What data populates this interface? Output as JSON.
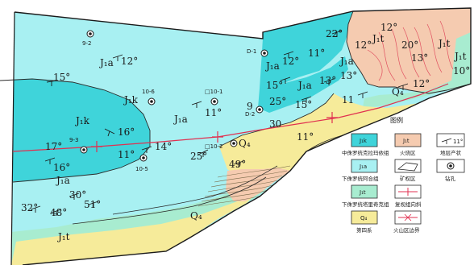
{
  "units": {
    "j1k": "J₁k",
    "j1a": "J₁a",
    "j1t": "J₁t",
    "q4": "Q₄"
  },
  "dips": {
    "d12a": "12°",
    "d15a": "15°",
    "d16a": "16°",
    "d17": "17°",
    "d16b": "16°",
    "d11a": "11°",
    "d14": "14°",
    "d11b": "11°",
    "d25a": "25°",
    "d49": "49°",
    "d32": "32°",
    "d30a": "30°",
    "d48": "48°",
    "d51": "51°",
    "d22": "22°",
    "d11c": "11°",
    "d12b": "12°",
    "d15b": "15°",
    "d25b": "25°",
    "d13a": "13°",
    "d15c": "15°",
    "d13b": "13°",
    "d11d": "11",
    "d30b": "30",
    "d11e": "11°",
    "d12c": "12°",
    "d12d": "12°",
    "d20": "20°",
    "d13c": "13°",
    "d12e": "12°",
    "d10": "10°"
  },
  "wells": {
    "w92": "9-2",
    "w106": "10-6",
    "w101": "□10-1",
    "w102": "□10-2",
    "w93": "9-3",
    "w105": "10-5",
    "wd1": "D-1",
    "wd2": "D-2",
    "w9": "9"
  },
  "legend": {
    "title": "图例",
    "items": {
      "j1k": {
        "symbol": "J₁k",
        "label": "中侏罗统克拉玛依组"
      },
      "j1tBurn": {
        "symbol": "J₁t",
        "label": "火烧区"
      },
      "dip": {
        "symbol": "11°",
        "label": "地层产状"
      },
      "j1a": {
        "symbol": "J₁a",
        "label": "下侏罗统阿合组"
      },
      "mine": {
        "label": "矿权区"
      },
      "well": {
        "label": "钻孔"
      },
      "j1t": {
        "symbol": "J₁t",
        "label": "下侏罗统塔里奇克组"
      },
      "section": {
        "label": "复视组向斜"
      },
      "q4": {
        "symbol": "Q₄",
        "label": "第四系"
      },
      "fireBoundary": {
        "label": "火山区边界"
      }
    }
  },
  "colors": {
    "j1k": "#3fd4da",
    "j1a": "#a8f0f2",
    "j1t": "#a8ecd0",
    "q4": "#f6eb9a",
    "burn": "#f5cbb0",
    "section": "#e03050",
    "line": "#2a2a2a"
  }
}
